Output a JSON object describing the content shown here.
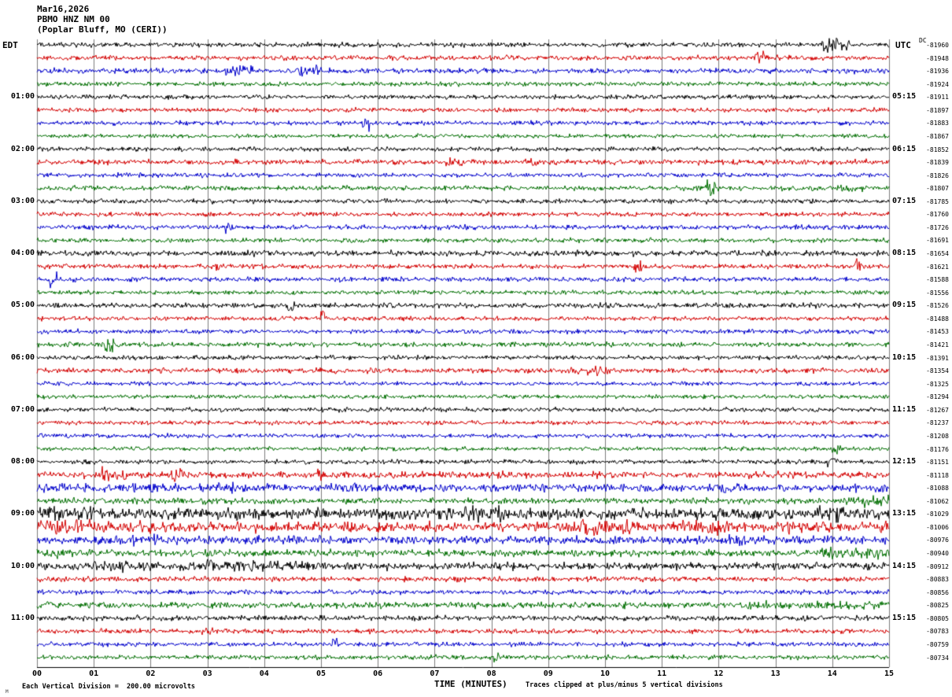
{
  "header": {
    "date": "Mar16,2026",
    "station": "PBMO HNZ NM 00",
    "location": "(Poplar Bluff, MO (CERI))"
  },
  "left_axis": {
    "label": "EDT",
    "hours": [
      "01:00",
      "02:00",
      "03:00",
      "04:00",
      "05:00",
      "06:00",
      "07:00",
      "08:00",
      "09:00",
      "10:00",
      "11:00"
    ]
  },
  "right_axis": {
    "label": "UTC",
    "dc_label": "DC",
    "hours": [
      "05:15",
      "06:15",
      "07:15",
      "08:15",
      "09:15",
      "10:15",
      "11:15",
      "12:15",
      "13:15",
      "14:15",
      "15:15"
    ],
    "dc_values": [
      "-81960",
      "-81948",
      "-81936",
      "-81924",
      "-81911",
      "-81897",
      "-81883",
      "-81867",
      "-81852",
      "-81839",
      "-81826",
      "-81807",
      "-81785",
      "-81760",
      "-81726",
      "-81691",
      "-81654",
      "-81621",
      "-81588",
      "-81556",
      "-81526",
      "-81488",
      "-81453",
      "-81421",
      "-81391",
      "-81354",
      "-81325",
      "-81294",
      "-81267",
      "-81237",
      "-81208",
      "-81176",
      "-81151",
      "-81118",
      "-81088",
      "-81062",
      "-81029",
      "-81006",
      "-80976",
      "-80940",
      "-80912",
      "-80883",
      "-80856",
      "-80825",
      "-80805",
      "-80783",
      "-80759",
      "-80734"
    ]
  },
  "x_axis": {
    "label": "TIME (MINUTES)",
    "ticks": [
      "00",
      "01",
      "02",
      "03",
      "04",
      "05",
      "06",
      "07",
      "08",
      "09",
      "10",
      "11",
      "12",
      "13",
      "14",
      "15"
    ]
  },
  "footer": {
    "left": "Each Vertical Division =  200.00 microvolts",
    "right": "Traces clipped at plus/minus 5 vertical divisions",
    "corner_mark": "M"
  },
  "chart_data": {
    "type": "line",
    "subtype": "helicorder-seismogram",
    "title": "PBMO HNZ NM 00 (Poplar Bluff, MO (CERI)) Mar16,2026",
    "xlabel": "TIME (MINUTES)",
    "x_range_minutes": [
      0,
      15
    ],
    "rows": 48,
    "row_duration_minutes": 15,
    "vertical_division": "200.00 microvolts",
    "clipping": "plus/minus 5 vertical divisions",
    "grid": true,
    "colors": {
      "black": "#000000",
      "red": "#d40000",
      "blue": "#0000cc",
      "green": "#006e00"
    },
    "note": "Ambient seismic noise traces; amp = relative noise amplitude, bursts = [startMin,endMin,amp] events",
    "traces": [
      {
        "color": "black",
        "amp": 1.3,
        "bursts": [
          [
            13.8,
            14.3,
            5
          ]
        ]
      },
      {
        "color": "red",
        "amp": 1.3,
        "bursts": [
          [
            12.6,
            12.8,
            4
          ]
        ]
      },
      {
        "color": "blue",
        "amp": 1.4,
        "bursts": [
          [
            3.3,
            3.8,
            3
          ],
          [
            4.6,
            5.0,
            3
          ]
        ]
      },
      {
        "color": "green",
        "amp": 1.2,
        "bursts": []
      },
      {
        "color": "black",
        "amp": 1.2,
        "bursts": []
      },
      {
        "color": "red",
        "amp": 1.2,
        "bursts": []
      },
      {
        "color": "blue",
        "amp": 1.2,
        "bursts": [
          [
            5.7,
            5.85,
            5
          ]
        ]
      },
      {
        "color": "green",
        "amp": 1.1,
        "bursts": []
      },
      {
        "color": "black",
        "amp": 1.2,
        "bursts": []
      },
      {
        "color": "red",
        "amp": 1.4,
        "bursts": [
          [
            7.2,
            7.5,
            2.5
          ],
          [
            8.6,
            8.9,
            2.5
          ]
        ]
      },
      {
        "color": "blue",
        "amp": 1.2,
        "bursts": []
      },
      {
        "color": "green",
        "amp": 1.3,
        "bursts": [
          [
            11.8,
            11.95,
            6
          ],
          [
            14.0,
            14.6,
            2.5
          ]
        ]
      },
      {
        "color": "black",
        "amp": 1.3,
        "bursts": []
      },
      {
        "color": "red",
        "amp": 1.2,
        "bursts": []
      },
      {
        "color": "blue",
        "amp": 1.3,
        "bursts": [
          [
            3.3,
            3.45,
            4
          ]
        ]
      },
      {
        "color": "green",
        "amp": 1.2,
        "bursts": []
      },
      {
        "color": "black",
        "amp": 1.5,
        "bursts": []
      },
      {
        "color": "red",
        "amp": 1.3,
        "bursts": [
          [
            3.1,
            3.2,
            3
          ],
          [
            10.5,
            10.65,
            5
          ],
          [
            14.4,
            14.5,
            5
          ]
        ]
      },
      {
        "color": "blue",
        "amp": 1.3,
        "bursts": [
          [
            0.2,
            0.35,
            4
          ]
        ]
      },
      {
        "color": "green",
        "amp": 1.2,
        "bursts": []
      },
      {
        "color": "black",
        "amp": 1.4,
        "bursts": [
          [
            4.4,
            4.55,
            4
          ]
        ]
      },
      {
        "color": "red",
        "amp": 1.2,
        "bursts": [
          [
            5.0,
            5.1,
            5
          ]
        ]
      },
      {
        "color": "blue",
        "amp": 1.2,
        "bursts": []
      },
      {
        "color": "green",
        "amp": 1.3,
        "bursts": [
          [
            1.2,
            1.35,
            4
          ]
        ]
      },
      {
        "color": "black",
        "amp": 1.2,
        "bursts": []
      },
      {
        "color": "red",
        "amp": 1.4,
        "bursts": [
          [
            9.3,
            10.2,
            2.5
          ]
        ]
      },
      {
        "color": "blue",
        "amp": 1.1,
        "bursts": []
      },
      {
        "color": "green",
        "amp": 1.1,
        "bursts": []
      },
      {
        "color": "black",
        "amp": 1.2,
        "bursts": []
      },
      {
        "color": "red",
        "amp": 1.2,
        "bursts": []
      },
      {
        "color": "blue",
        "amp": 1.2,
        "bursts": []
      },
      {
        "color": "green",
        "amp": 1.1,
        "bursts": [
          [
            14.0,
            14.15,
            3
          ]
        ]
      },
      {
        "color": "black",
        "amp": 1.2,
        "bursts": [
          [
            13.9,
            14.05,
            3
          ]
        ]
      },
      {
        "color": "red",
        "amp": 1.8,
        "bursts": [
          [
            1.1,
            1.6,
            4
          ],
          [
            2.3,
            2.6,
            4
          ],
          [
            4.9,
            5.15,
            3
          ]
        ]
      },
      {
        "color": "blue",
        "amp": 2.2,
        "bursts": [
          [
            0.3,
            0.9,
            3
          ],
          [
            1.6,
            2.1,
            3
          ],
          [
            3.1,
            3.5,
            3
          ]
        ]
      },
      {
        "color": "green",
        "amp": 1.6,
        "bursts": [
          [
            14.2,
            15,
            3
          ]
        ]
      },
      {
        "color": "black",
        "amp": 3.0,
        "bursts": [
          [
            0,
            1.5,
            4
          ],
          [
            7.5,
            8.2,
            5
          ],
          [
            9.0,
            9.3,
            4
          ],
          [
            13.7,
            14.2,
            6
          ]
        ]
      },
      {
        "color": "red",
        "amp": 2.8,
        "bursts": [
          [
            0,
            1.2,
            4
          ],
          [
            9.5,
            10.5,
            4
          ],
          [
            11.3,
            12.2,
            4
          ],
          [
            13.0,
            13.5,
            4
          ]
        ]
      },
      {
        "color": "blue",
        "amp": 2.2,
        "bursts": [
          [
            1.5,
            2.2,
            3
          ],
          [
            3.0,
            3.4,
            3
          ],
          [
            12.0,
            12.5,
            3
          ]
        ]
      },
      {
        "color": "green",
        "amp": 1.9,
        "bursts": [
          [
            0,
            0.5,
            3
          ],
          [
            13.8,
            15,
            3
          ]
        ]
      },
      {
        "color": "black",
        "amp": 2.0,
        "bursts": [
          [
            1.0,
            2.0,
            3
          ],
          [
            2.5,
            4.8,
            3.2
          ]
        ]
      },
      {
        "color": "red",
        "amp": 1.4,
        "bursts": []
      },
      {
        "color": "blue",
        "amp": 1.3,
        "bursts": []
      },
      {
        "color": "green",
        "amp": 1.7,
        "bursts": [
          [
            12.5,
            15,
            2.4
          ]
        ]
      },
      {
        "color": "black",
        "amp": 1.4,
        "bursts": []
      },
      {
        "color": "red",
        "amp": 1.3,
        "bursts": [
          [
            2.9,
            3.1,
            2.5
          ]
        ]
      },
      {
        "color": "blue",
        "amp": 1.2,
        "bursts": [
          [
            5.2,
            5.3,
            5
          ]
        ]
      },
      {
        "color": "green",
        "amp": 1.2,
        "bursts": [
          [
            8.0,
            8.15,
            3
          ]
        ]
      }
    ]
  }
}
